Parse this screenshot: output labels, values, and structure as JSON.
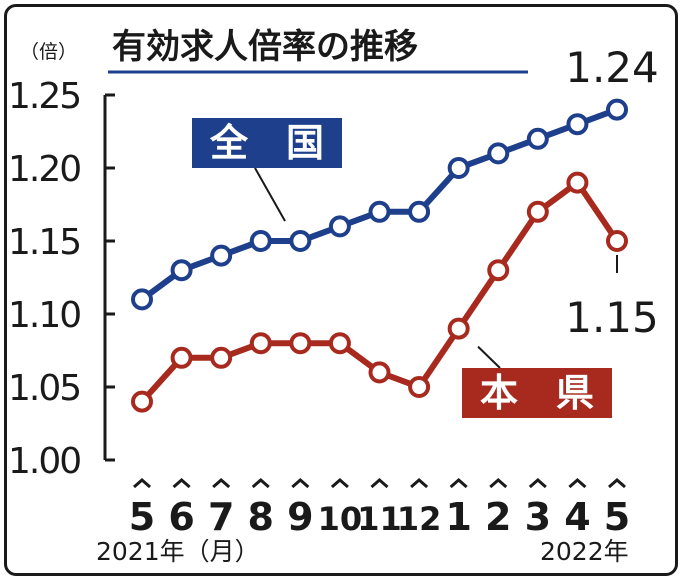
{
  "chart_data": {
    "type": "line",
    "title": "有効求人倍率の推移",
    "unit_label": "（倍）",
    "categories": [
      "5",
      "6",
      "7",
      "8",
      "9",
      "10",
      "11",
      "12",
      "1",
      "2",
      "3",
      "4",
      "5"
    ],
    "year_start_label": "2021年（月）",
    "year_end_label": "2022年",
    "ylim": [
      1.0,
      1.25
    ],
    "y_ticks": [
      "1.00",
      "1.05",
      "1.10",
      "1.15",
      "1.20",
      "1.25"
    ],
    "grid": false,
    "series": [
      {
        "name": "全　国",
        "color": "#1d3f8c",
        "values": [
          1.11,
          1.13,
          1.14,
          1.15,
          1.15,
          1.16,
          1.17,
          1.17,
          1.2,
          1.21,
          1.22,
          1.23,
          1.24
        ],
        "end_label": "1.24"
      },
      {
        "name": "本　県",
        "color": "#a82a1e",
        "values": [
          1.04,
          1.07,
          1.07,
          1.08,
          1.08,
          1.08,
          1.06,
          1.05,
          1.09,
          1.13,
          1.17,
          1.19,
          1.15
        ],
        "end_label": "1.15"
      }
    ]
  }
}
